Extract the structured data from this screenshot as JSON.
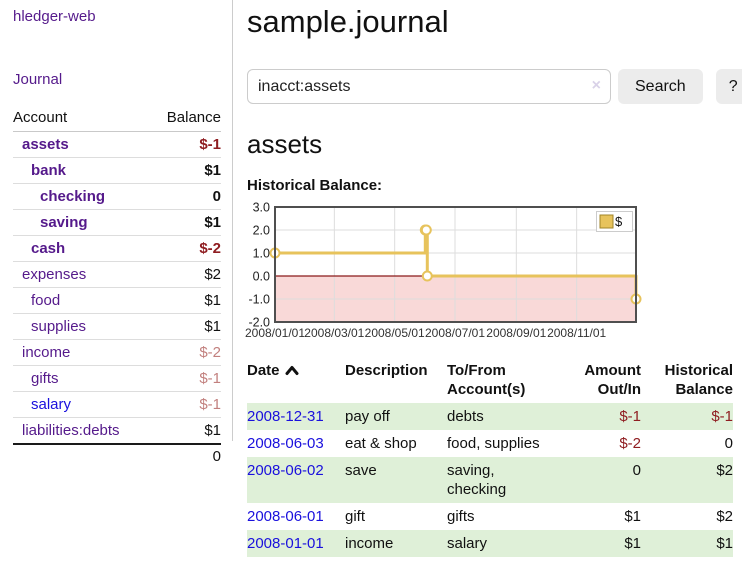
{
  "sidebar": {
    "app_title": "hledger-web",
    "nav": [
      {
        "label": "Journal"
      }
    ],
    "accounts_table": {
      "headers": {
        "account": "Account",
        "balance": "Balance"
      },
      "rows": [
        {
          "name": "assets",
          "balance": "$-1",
          "indent": 1,
          "bold": true,
          "negative": "strong"
        },
        {
          "name": "bank",
          "balance": "$1",
          "indent": 2,
          "bold": true
        },
        {
          "name": "checking",
          "balance": "0",
          "indent": 3,
          "bold": true
        },
        {
          "name": "saving",
          "balance": "$1",
          "indent": 3,
          "bold": true
        },
        {
          "name": "cash",
          "balance": "$-2",
          "indent": 2,
          "bold": true,
          "negative": "strong"
        },
        {
          "name": "expenses",
          "balance": "$2",
          "indent": 1
        },
        {
          "name": "food",
          "balance": "$1",
          "indent": 2
        },
        {
          "name": "supplies",
          "balance": "$1",
          "indent": 2
        },
        {
          "name": "income",
          "balance": "$-2",
          "indent": 1,
          "negative": "soft"
        },
        {
          "name": "gifts",
          "balance": "$-1",
          "indent": 2,
          "negative": "soft"
        },
        {
          "name": "salary",
          "balance": "$-1",
          "indent": 2,
          "negative": "soft",
          "link_style": "unvisited"
        },
        {
          "name": "liabilities:debts",
          "balance": "$1",
          "indent": 1
        }
      ],
      "total": "0"
    }
  },
  "header": {
    "title": "sample.journal"
  },
  "search": {
    "value": "inacct:assets",
    "clear_icon": "×",
    "search_button": "Search",
    "help_button": "?"
  },
  "account_page": {
    "title": "assets"
  },
  "chart_data": {
    "type": "line",
    "title": "Historical Balance:",
    "step": true,
    "series": [
      {
        "name": "$",
        "points": [
          {
            "x": "2008-01-01",
            "y": 1
          },
          {
            "x": "2008-06-01",
            "y": 2
          },
          {
            "x": "2008-06-02",
            "y": 2
          },
          {
            "x": "2008-06-03",
            "y": 0
          },
          {
            "x": "2008-12-31",
            "y": -1
          }
        ]
      }
    ],
    "x_range": [
      "2008-01-01",
      "2008-12-31"
    ],
    "y_range": [
      -2,
      3
    ],
    "y_ticks": [
      "3.0",
      "2.0",
      "1.0",
      "0.0",
      "-1.0",
      "-2.0"
    ],
    "y_gridlines": [
      2,
      1,
      -1
    ],
    "x_ticks": [
      {
        "label": "2008/01/01",
        "date": "2008-01-01"
      },
      {
        "label": "2008/03/01",
        "date": "2008-03-01"
      },
      {
        "label": "2008/05/01",
        "date": "2008-05-01"
      },
      {
        "label": "2008/07/01",
        "date": "2008-07-01"
      },
      {
        "label": "2008/09/01",
        "date": "2008-09-01"
      },
      {
        "label": "2008/11/01",
        "date": "2008-11-01"
      }
    ],
    "legend": {
      "label": "$",
      "position": "top-right"
    },
    "line_color": "#e7c35c",
    "negative_fill": "#f9d9d8",
    "zero_line_color": "#8b1a1a",
    "grid": true
  },
  "register_table": {
    "headers": {
      "date": "Date",
      "description": "Description",
      "tofrom": "To/From Account(s)",
      "amount": "Amount Out/In",
      "balance": "Historical Balance"
    },
    "sort": "ascending",
    "rows": [
      {
        "date": "2008-12-31",
        "description": "pay off",
        "accounts": "debts",
        "amount": "$-1",
        "balance": "$-1",
        "amount_negative": true,
        "balance_negative": true,
        "shaded": true
      },
      {
        "date": "2008-06-03",
        "description": "eat & shop",
        "accounts": "food, supplies",
        "amount": "$-2",
        "balance": "0",
        "amount_negative": true,
        "shaded": false
      },
      {
        "date": "2008-06-02",
        "description": "save",
        "accounts": "saving, checking",
        "amount": "0",
        "balance": "$2",
        "shaded": true
      },
      {
        "date": "2008-06-01",
        "description": "gift",
        "accounts": "gifts",
        "amount": "$1",
        "balance": "$2",
        "shaded": false
      },
      {
        "date": "2008-01-01",
        "description": "income",
        "accounts": "salary",
        "amount": "$1",
        "balance": "$1",
        "shaded": true
      }
    ]
  },
  "colors": {
    "visited_link": "#551a8b",
    "unvisited_link": "#1a10dd",
    "negative_strong": "#8f1d21",
    "negative_soft": "#c2807e",
    "row_shade_green": "#dff0d8",
    "chart_line": "#e7c35c",
    "chart_negative_fill": "#f9d9d8",
    "chart_zero_line": "#8b1a1a",
    "button_bg": "#ececec"
  }
}
